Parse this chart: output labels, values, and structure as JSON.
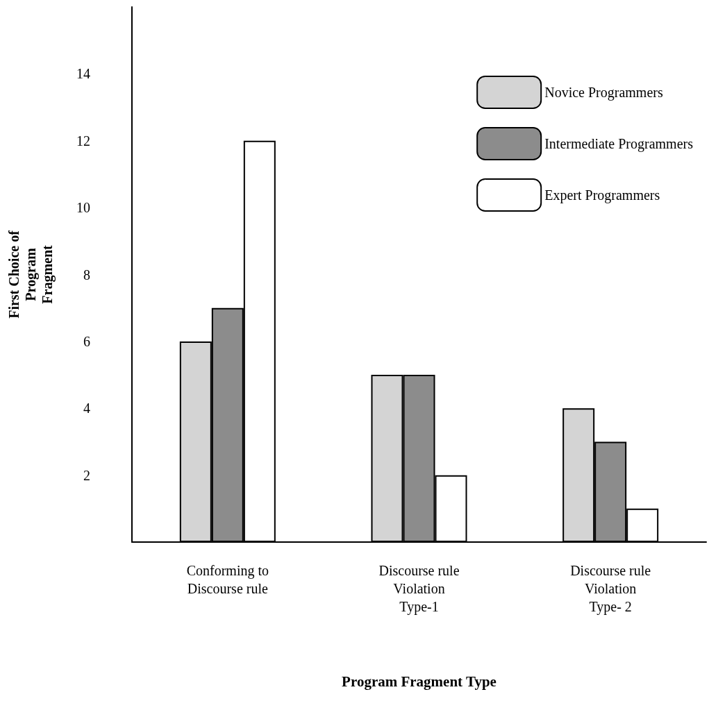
{
  "chart_data": {
    "type": "bar",
    "xlabel": "Program Fragment Type",
    "ylabel": "First Choice of\nProgram\nFragment",
    "categories": [
      "Conforming to\nDiscourse rule",
      "Discourse rule\nViolation\nType-1",
      "Discourse rule\nViolation\nType- 2"
    ],
    "series": [
      {
        "name": "Novice Programmers",
        "color": "#d4d4d4",
        "values": [
          6,
          5,
          4
        ]
      },
      {
        "name": "Intermediate Programmers",
        "color": "#8c8c8c",
        "values": [
          7,
          5,
          3
        ]
      },
      {
        "name": "Expert Programmers",
        "color": "#ffffff",
        "values": [
          12,
          2,
          1
        ]
      }
    ],
    "ylim": [
      0,
      16
    ],
    "yticks": [
      2,
      4,
      6,
      8,
      10,
      12,
      14
    ],
    "grid": false,
    "legend": "top right"
  }
}
